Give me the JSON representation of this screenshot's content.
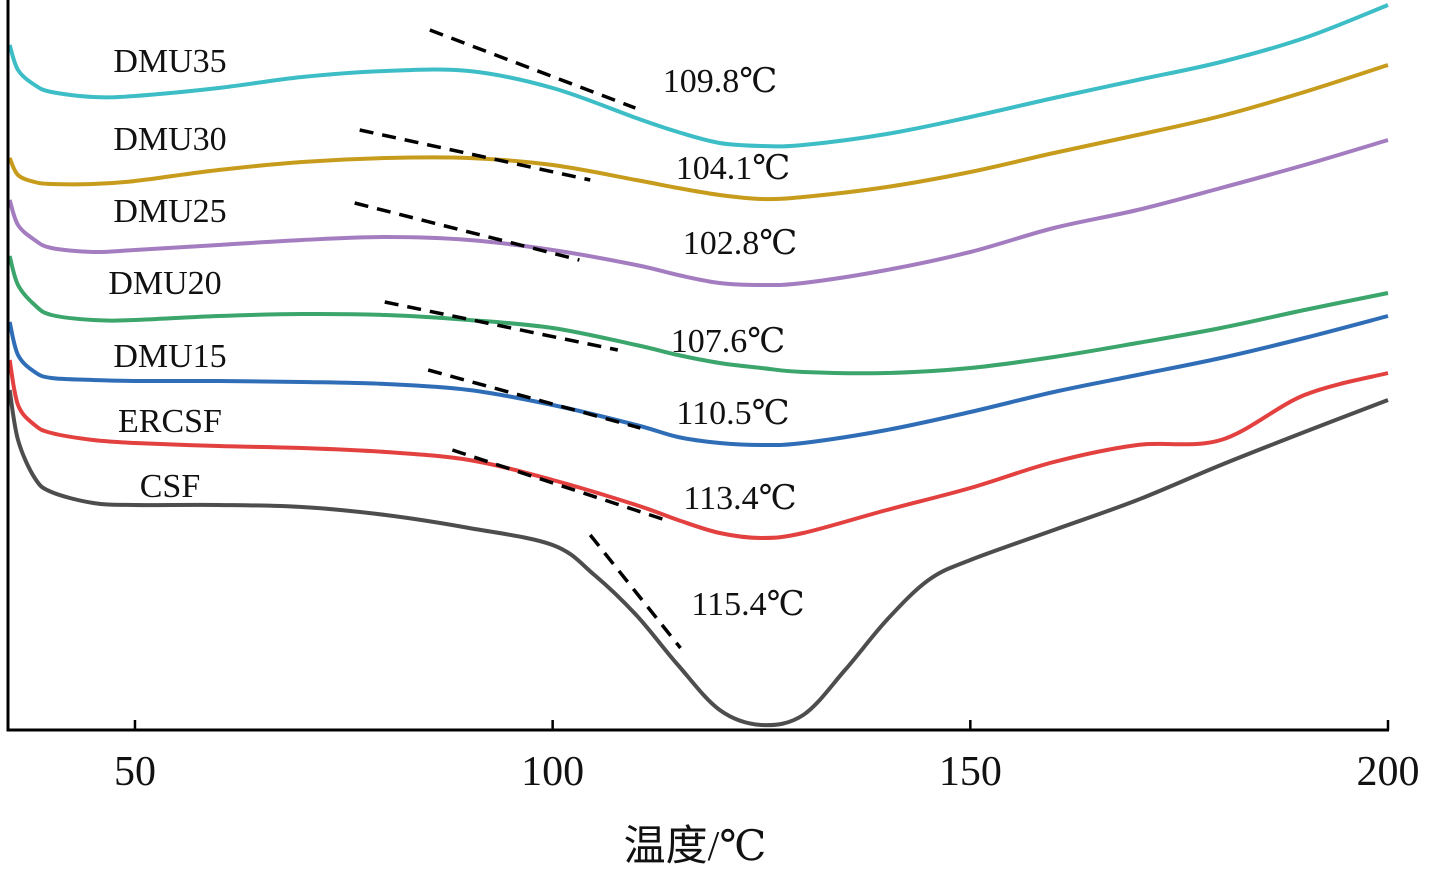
{
  "chart_data": {
    "type": "line",
    "title": "",
    "xlabel": "温度/℃",
    "ylabel": "",
    "xlim": [
      34.8,
      200
    ],
    "ylim": [
      0,
      73
    ],
    "x_ticks": [
      50,
      100,
      150,
      200
    ],
    "x_tick_labels": [
      "50",
      "100",
      "150",
      "200"
    ],
    "grid": false,
    "legend": "none; series names printed beside curves",
    "series": [
      {
        "name": "DMU35",
        "color": "#3dbdc6",
        "onset_label": "109.8℃",
        "x": [
          35,
          36,
          38,
          40,
          45,
          50,
          60,
          70,
          80,
          90,
          100,
          110,
          115,
          120,
          125,
          130,
          140,
          150,
          160,
          170,
          180,
          190,
          200
        ],
        "y": [
          68.5,
          66,
          64.5,
          63.8,
          63.3,
          63.4,
          64.2,
          65.3,
          65.9,
          65.9,
          64.2,
          61.2,
          59.8,
          58.7,
          58.4,
          58.5,
          59.6,
          61.3,
          63.2,
          65,
          66.8,
          69.2,
          72.5
        ],
        "tangent": {
          "x": [
            85.3,
            109.9
          ],
          "y": [
            70,
            62.2
          ]
        }
      },
      {
        "name": "DMU30",
        "color": "#c79c1c",
        "onset_label": "104.1℃",
        "x": [
          35,
          36,
          38,
          40,
          45,
          50,
          60,
          70,
          80,
          90,
          100,
          110,
          115,
          120,
          125,
          130,
          140,
          150,
          160,
          170,
          180,
          190,
          200
        ],
        "y": [
          57.2,
          55.5,
          54.8,
          54.6,
          54.6,
          54.9,
          56,
          56.8,
          57.2,
          57.2,
          56.5,
          55,
          54.2,
          53.5,
          53.1,
          53.3,
          54.3,
          55.8,
          57.7,
          59.5,
          61.4,
          63.8,
          66.5
        ],
        "tangent": {
          "x": [
            76.9,
            104.5
          ],
          "y": [
            60,
            55
          ]
        }
      },
      {
        "name": "DMU25",
        "color": "#a47cc0",
        "onset_label": "102.8℃",
        "x": [
          35,
          36,
          38,
          40,
          45,
          50,
          60,
          70,
          80,
          90,
          100,
          110,
          115,
          120,
          125,
          130,
          140,
          150,
          160,
          170,
          180,
          190,
          200
        ],
        "y": [
          53,
          50.5,
          49,
          48.2,
          47.8,
          48,
          48.5,
          49,
          49.3,
          49,
          48,
          46.5,
          45.5,
          44.7,
          44.5,
          44.7,
          46,
          47.8,
          50.2,
          52,
          54.2,
          56.5,
          59
        ],
        "tangent": {
          "x": [
            76.3,
            103.2
          ],
          "y": [
            52.7,
            47
          ]
        }
      },
      {
        "name": "DMU20",
        "color": "#3ba56c",
        "onset_label": "107.6℃",
        "x": [
          35,
          36,
          38,
          40,
          45,
          50,
          60,
          70,
          80,
          90,
          100,
          110,
          115,
          120,
          125,
          130,
          140,
          150,
          160,
          170,
          180,
          190,
          200
        ],
        "y": [
          47.4,
          44.5,
          42.5,
          41.5,
          41,
          41,
          41.4,
          41.6,
          41.5,
          41,
          40.2,
          38.5,
          37.5,
          36.7,
          36.2,
          35.8,
          35.7,
          36.2,
          37.3,
          38.7,
          40.2,
          42,
          43.7
        ],
        "tangent": {
          "x": [
            79.9,
            107.8
          ],
          "y": [
            42.8,
            38
          ]
        }
      },
      {
        "name": "DMU15",
        "color": "#2f6eb7",
        "onset_label": "110.5℃",
        "x": [
          35,
          36,
          38,
          40,
          45,
          50,
          60,
          70,
          80,
          90,
          100,
          110,
          115,
          120,
          125,
          130,
          140,
          150,
          160,
          170,
          180,
          190,
          200
        ],
        "y": [
          40.8,
          37.5,
          35.8,
          35.2,
          35,
          34.9,
          34.9,
          34.8,
          34.6,
          34,
          32.5,
          30.5,
          29.3,
          28.7,
          28.5,
          28.7,
          30,
          31.8,
          33.8,
          35.5,
          37.2,
          39.2,
          41.4
        ],
        "tangent": {
          "x": [
            85.1,
            110.5
          ],
          "y": [
            36,
            30.2
          ]
        }
      },
      {
        "name": "ERCSF",
        "color": "#e2413f",
        "onset_label": "113.4℃",
        "x": [
          35,
          36,
          38,
          40,
          45,
          50,
          60,
          70,
          80,
          90,
          100,
          110,
          115,
          120,
          125,
          130,
          140,
          150,
          160,
          170,
          180,
          190,
          200
        ],
        "y": [
          37,
          32.5,
          30.5,
          29.7,
          29,
          28.7,
          28.4,
          28.2,
          27.8,
          27,
          25,
          22.5,
          21,
          19.7,
          19.2,
          19.7,
          22,
          24.2,
          26.8,
          28.5,
          29,
          33.5,
          35.7
        ],
        "tangent": {
          "x": [
            88.0,
            113.5
          ],
          "y": [
            28,
            21
          ]
        }
      },
      {
        "name": "CSF",
        "color": "#4d4d4d",
        "onset_label": "115.4℃",
        "x": [
          35,
          36,
          38,
          40,
          45,
          50,
          60,
          70,
          80,
          90,
          100,
          105,
          110,
          115,
          120,
          125,
          130,
          135,
          140,
          145,
          150,
          160,
          170,
          180,
          190,
          200
        ],
        "y": [
          34,
          29,
          25.2,
          23.8,
          22.7,
          22.5,
          22.5,
          22.3,
          21.5,
          20.2,
          18.5,
          15.5,
          11.5,
          6.5,
          2,
          0.5,
          1.5,
          6,
          11,
          15,
          17,
          20,
          23,
          26.5,
          29.8,
          33
        ],
        "tangent": {
          "x": [
            104.5,
            115.3
          ],
          "y": [
            19.5,
            8.2
          ]
        }
      }
    ]
  }
}
